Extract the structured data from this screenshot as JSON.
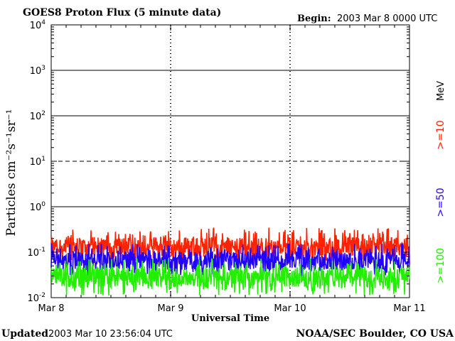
{
  "chart_data": {
    "type": "line",
    "title": "GOES8 Proton Flux (5 minute data)",
    "begin_label": "Begin:",
    "begin_value": "2003 Mar 8 0000 UTC",
    "xlabel": "Universal Time",
    "ylabel": "Particles cm⁻²s⁻¹sr⁻¹",
    "units_label": "MeV",
    "y_scale": "log",
    "ylim": [
      0.01,
      10000
    ],
    "xlim_days": [
      0,
      3
    ],
    "x_ticks": [
      {
        "day": 0,
        "label": "Mar 8"
      },
      {
        "day": 1,
        "label": "Mar 9"
      },
      {
        "day": 2,
        "label": "Mar 10"
      },
      {
        "day": 3,
        "label": "Mar 11"
      }
    ],
    "y_ticks": [
      {
        "value": 0.01,
        "base": "10",
        "exp": "-2"
      },
      {
        "value": 0.1,
        "base": "10",
        "exp": "-1"
      },
      {
        "value": 1,
        "base": "10",
        "exp": "0"
      },
      {
        "value": 10,
        "base": "10",
        "exp": "1"
      },
      {
        "value": 100,
        "base": "10",
        "exp": "2"
      },
      {
        "value": 1000,
        "base": "10",
        "exp": "3"
      },
      {
        "value": 10000,
        "base": "10",
        "exp": "4"
      }
    ],
    "threshold_lines": [
      {
        "value": 1,
        "style": "solid"
      },
      {
        "value": 10,
        "style": "dashed"
      },
      {
        "value": 100,
        "style": "solid"
      },
      {
        "value": 1000,
        "style": "solid"
      }
    ],
    "day_markers": [
      1,
      2
    ],
    "series": [
      {
        "name": ">=10",
        "color": "#ff2200",
        "typical_value": 0.13,
        "min": 0.055,
        "max": 0.35
      },
      {
        "name": ">=50",
        "color": "#2200ff",
        "typical_value": 0.065,
        "min": 0.03,
        "max": 0.16
      },
      {
        "name": ">=100",
        "color": "#22ee00",
        "typical_value": 0.028,
        "min": 0.011,
        "max": 0.075
      }
    ]
  },
  "footer": {
    "updated_label": "Updated",
    "updated_value": "2003 Mar 10 23:56:04 UTC",
    "source": "NOAA/SEC Boulder, CO USA"
  }
}
